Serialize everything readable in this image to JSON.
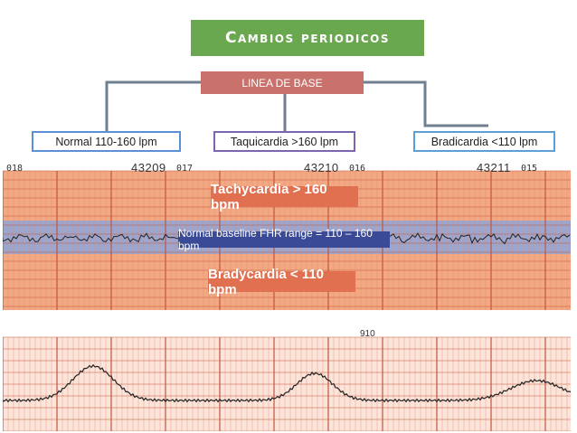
{
  "title": "Cambios periodicos",
  "baseline_label": "LINEA DE BASE",
  "categories": [
    {
      "label": "Normal  110-160 lpm"
    },
    {
      "label": "Taquicardia >160 lpm"
    },
    {
      "label": "Bradicardia <110 lpm"
    }
  ],
  "strip": {
    "tachycardia_label": "Tachycardia > 160 bpm",
    "normal_label": "Normal baseline FHR range = 110 – 160 bpm",
    "bradycardia_label": "Bradycardia < 110 bpm",
    "page_numbers": [
      "018",
      "017",
      "016",
      "015"
    ],
    "strip_ids": [
      "43209",
      "43210",
      "43211"
    ],
    "handwritten": "910"
  },
  "colors": {
    "title_bg": "#6aa84f",
    "baseline_bg": "#c9716b",
    "grid_orange": "#f2a983",
    "grid_band": "#9aa6cf",
    "label_orange": "#e07050",
    "label_blue": "#3a4a96"
  }
}
